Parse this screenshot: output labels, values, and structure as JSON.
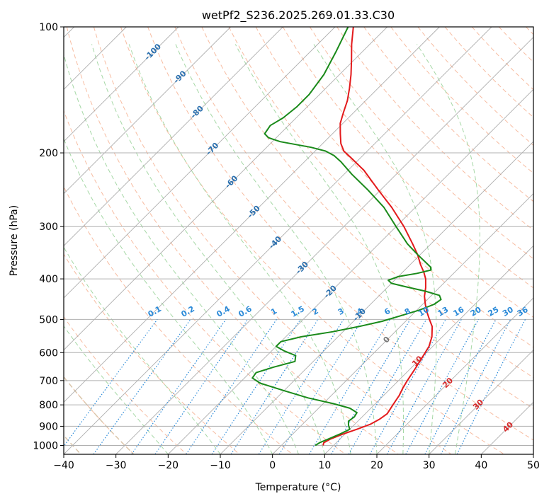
{
  "chart_data": {
    "type": "skew-t",
    "title": "wetPf2_S236.2025.269.01.33.C30",
    "xlabel": "Temperature (°C)",
    "ylabel": "Pressure (hPa)",
    "xlim": [
      -40,
      50
    ],
    "ylim": [
      1050,
      100
    ],
    "x_ticks": [
      -40,
      -30,
      -20,
      -10,
      0,
      10,
      20,
      30,
      40,
      50
    ],
    "x_tick_labels": [
      "−40",
      "−30",
      "−20",
      "−10",
      "0",
      "10",
      "20",
      "30",
      "40",
      "50"
    ],
    "y_ticks": [
      100,
      200,
      300,
      400,
      500,
      600,
      700,
      800,
      900,
      1000
    ],
    "y_tick_labels": [
      "100",
      "200",
      "300",
      "400",
      "500",
      "600",
      "700",
      "800",
      "900",
      "1000"
    ],
    "grid": true,
    "colors": {
      "temperature": "#e31a1c",
      "dewpoint": "#1a8a1a",
      "isotherm": "#9a9a9a",
      "dry_adiabat": "#f4a582",
      "moist_adiabat": "#a6d8a6",
      "mixing_ratio": "#2b8ad8",
      "isotherm_label": "#2a6fae",
      "warm_label": "#d62728",
      "zero_label": "#777777",
      "theta_curve": "#d9c4a8"
    },
    "isotherm_labels": [
      {
        "value": "-100",
        "t": -100,
        "p": 115
      },
      {
        "value": "-90",
        "t": -90,
        "p": 132
      },
      {
        "value": "-80",
        "t": -80,
        "p": 160
      },
      {
        "value": "-70",
        "t": -70,
        "p": 196
      },
      {
        "value": "-60",
        "t": -60,
        "p": 235
      },
      {
        "value": "-50",
        "t": -50,
        "p": 277
      },
      {
        "value": "-40",
        "t": -40,
        "p": 328
      },
      {
        "value": "-30",
        "t": -30,
        "p": 377
      },
      {
        "value": "-20",
        "t": -20,
        "p": 430
      },
      {
        "value": "-10",
        "t": -10,
        "p": 488
      },
      {
        "value": "0",
        "t": 0,
        "p": 560
      },
      {
        "value": "10",
        "t": 10,
        "p": 630
      },
      {
        "value": "20",
        "t": 20,
        "p": 710
      },
      {
        "value": "30",
        "t": 30,
        "p": 800
      },
      {
        "value": "40",
        "t": 40,
        "p": 905
      }
    ],
    "mixing_ratio_lines": [
      "0.1",
      "0.2",
      "0.4",
      "0.6",
      "1",
      "1.5",
      "2",
      "3",
      "4",
      "6",
      "8",
      "10",
      "13",
      "16",
      "20",
      "25",
      "30",
      "36"
    ],
    "series": [
      {
        "name": "Temperature",
        "points": [
          [
            1000,
            8.0
          ],
          [
            985,
            7.6
          ],
          [
            965,
            8.2
          ],
          [
            940,
            9.6
          ],
          [
            915,
            11.4
          ],
          [
            890,
            13.0
          ],
          [
            865,
            13.8
          ],
          [
            840,
            14.2
          ],
          [
            800,
            13.6
          ],
          [
            760,
            13.0
          ],
          [
            730,
            12.3
          ],
          [
            700,
            11.7
          ],
          [
            660,
            11.0
          ],
          [
            620,
            10.2
          ],
          [
            580,
            9.3
          ],
          [
            550,
            8.0
          ],
          [
            520,
            6.1
          ],
          [
            500,
            4.2
          ],
          [
            480,
            2.3
          ],
          [
            460,
            0.5
          ],
          [
            440,
            -1.2
          ],
          [
            420,
            -2.6
          ],
          [
            400,
            -4.3
          ],
          [
            385,
            -6.0
          ],
          [
            370,
            -8.0
          ],
          [
            350,
            -10.5
          ],
          [
            330,
            -13.5
          ],
          [
            300,
            -18.5
          ],
          [
            270,
            -24.5
          ],
          [
            245,
            -30.5
          ],
          [
            220,
            -37.0
          ],
          [
            205,
            -42.0
          ],
          [
            198,
            -44.5
          ],
          [
            190,
            -46.5
          ],
          [
            180,
            -48.5
          ],
          [
            170,
            -50.5
          ],
          [
            160,
            -52.0
          ],
          [
            150,
            -53.5
          ],
          [
            140,
            -55.5
          ],
          [
            130,
            -57.8
          ],
          [
            120,
            -60.5
          ],
          [
            110,
            -63.5
          ],
          [
            100,
            -66.5
          ]
        ]
      },
      {
        "name": "Dewpoint",
        "points": [
          [
            1000,
            6.5
          ],
          [
            985,
            6.8
          ],
          [
            965,
            7.8
          ],
          [
            940,
            9.0
          ],
          [
            915,
            10.0
          ],
          [
            895,
            9.0
          ],
          [
            875,
            8.2
          ],
          [
            855,
            8.5
          ],
          [
            835,
            8.2
          ],
          [
            815,
            6.0
          ],
          [
            795,
            2.0
          ],
          [
            770,
            -4.0
          ],
          [
            740,
            -10.0
          ],
          [
            710,
            -16.0
          ],
          [
            690,
            -18.5
          ],
          [
            670,
            -18.8
          ],
          [
            650,
            -16.5
          ],
          [
            630,
            -13.5
          ],
          [
            610,
            -14.5
          ],
          [
            595,
            -17.5
          ],
          [
            580,
            -20.0
          ],
          [
            565,
            -20.0
          ],
          [
            550,
            -17.0
          ],
          [
            535,
            -12.0
          ],
          [
            520,
            -8.0
          ],
          [
            505,
            -4.5
          ],
          [
            490,
            -2.0
          ],
          [
            475,
            0.5
          ],
          [
            460,
            2.2
          ],
          [
            448,
            2.6
          ],
          [
            438,
            1.5
          ],
          [
            428,
            -2.0
          ],
          [
            418,
            -6.5
          ],
          [
            410,
            -10.0
          ],
          [
            403,
            -11.2
          ],
          [
            395,
            -10.0
          ],
          [
            388,
            -7.0
          ],
          [
            381,
            -5.0
          ],
          [
            375,
            -5.6
          ],
          [
            365,
            -7.5
          ],
          [
            350,
            -10.5
          ],
          [
            330,
            -14.5
          ],
          [
            300,
            -20.0
          ],
          [
            270,
            -26.0
          ],
          [
            245,
            -32.5
          ],
          [
            225,
            -38.5
          ],
          [
            210,
            -43.0
          ],
          [
            203,
            -45.5
          ],
          [
            198,
            -48.0
          ],
          [
            194,
            -51.5
          ],
          [
            191,
            -55.0
          ],
          [
            188,
            -58.5
          ],
          [
            184,
            -61.5
          ],
          [
            180,
            -63.0
          ],
          [
            172,
            -63.5
          ],
          [
            165,
            -62.5
          ],
          [
            155,
            -62.0
          ],
          [
            145,
            -62.0
          ],
          [
            130,
            -63.0
          ],
          [
            115,
            -65.0
          ],
          [
            100,
            -67.5
          ]
        ]
      }
    ]
  }
}
